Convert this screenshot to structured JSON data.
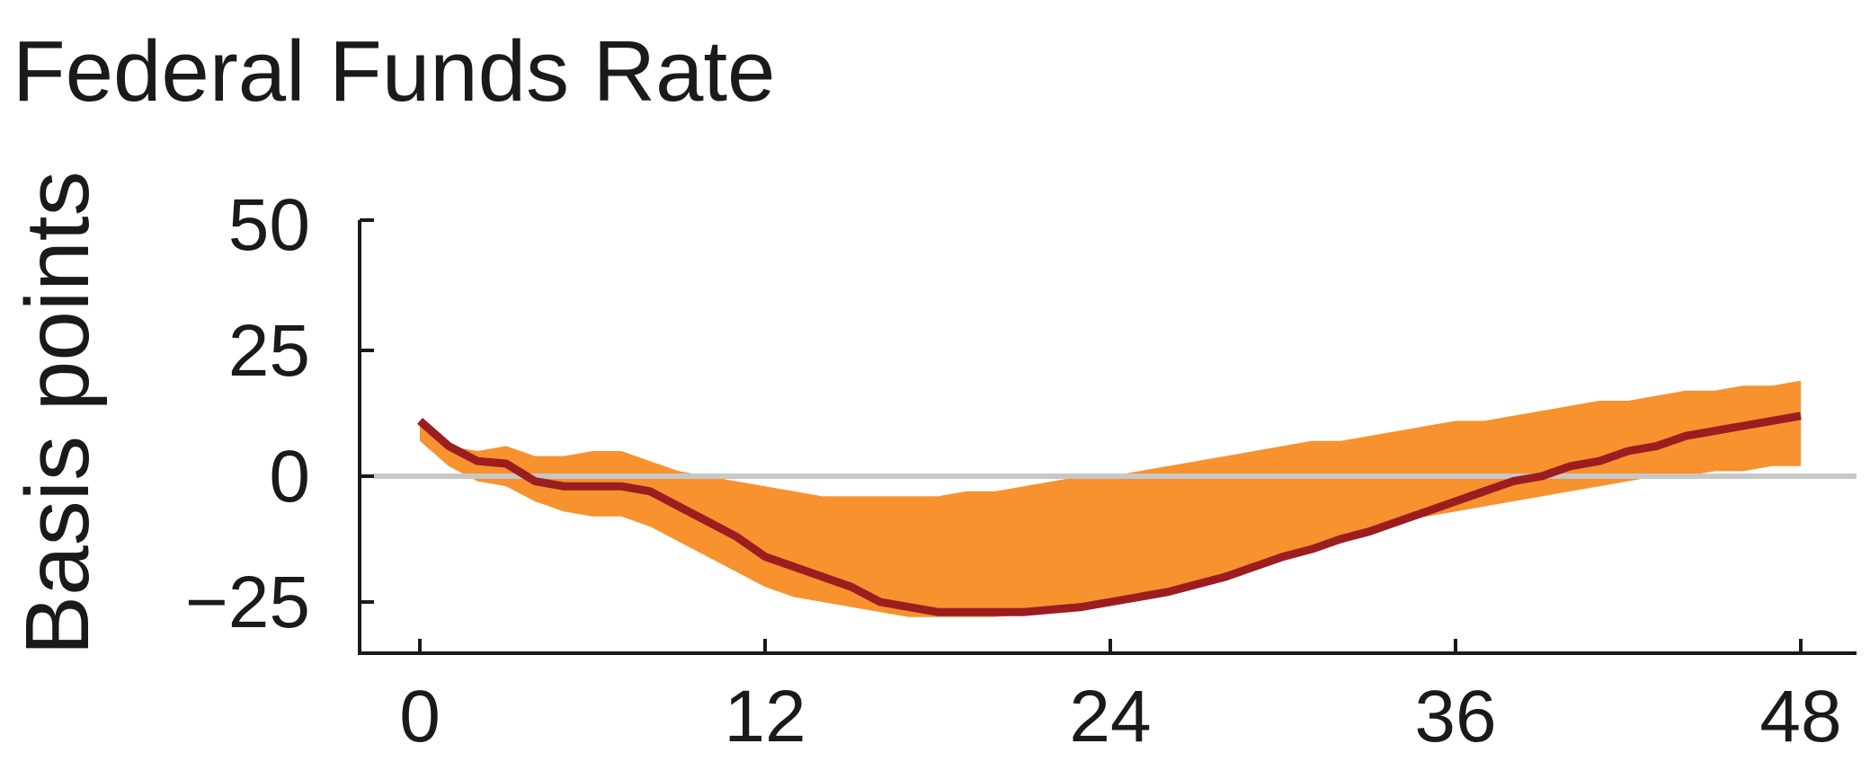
{
  "chart_data": {
    "type": "area",
    "title": "Federal Funds Rate",
    "xlabel": "",
    "ylabel": "Basis points",
    "xlim": [
      0,
      48
    ],
    "ylim": [
      -35,
      50
    ],
    "xticks": [
      0,
      12,
      24,
      36,
      48
    ],
    "xtick_labels": [
      "0",
      "12",
      "24",
      "36",
      "48"
    ],
    "yticks": [
      50,
      25,
      0,
      -25
    ],
    "ytick_labels": [
      "50",
      "25",
      "0",
      "−25"
    ],
    "zero_line": true,
    "grid": false,
    "colors": {
      "band": "#f7922f",
      "line": "#9c1d20",
      "zero_line": "#c7c7c7",
      "axis": "#1a1a1a"
    },
    "x": [
      0,
      1,
      2,
      3,
      4,
      5,
      6,
      7,
      8,
      9,
      10,
      11,
      12,
      13,
      14,
      15,
      16,
      17,
      18,
      19,
      20,
      21,
      22,
      23,
      24,
      25,
      26,
      27,
      28,
      29,
      30,
      31,
      32,
      33,
      34,
      35,
      36,
      37,
      38,
      39,
      40,
      41,
      42,
      43,
      44,
      45,
      46,
      47,
      48
    ],
    "series": [
      {
        "role": "median",
        "values": [
          11,
          6,
          3,
          2.5,
          -1,
          -2,
          -2,
          -2,
          -3,
          -6,
          -9,
          -12,
          -16,
          -18,
          -20,
          -22,
          -25,
          -26,
          -27,
          -27,
          -27,
          -27,
          -26.5,
          -26,
          -25,
          -24,
          -23,
          -21.5,
          -20,
          -18,
          -16,
          -14.5,
          -12.5,
          -11,
          -9,
          -7,
          -5,
          -3,
          -1,
          0,
          2,
          3,
          5,
          6,
          8,
          9,
          10,
          11,
          12
        ]
      },
      {
        "role": "band_upper",
        "values": [
          10,
          6,
          5,
          6,
          4,
          4,
          5,
          5,
          3,
          1,
          0,
          -1,
          -2,
          -3,
          -4,
          -4,
          -4,
          -4,
          -4,
          -3,
          -3,
          -2,
          -1,
          0,
          0,
          1,
          2,
          3,
          4,
          5,
          6,
          7,
          7,
          8,
          9,
          10,
          11,
          11,
          12,
          13,
          14,
          15,
          15,
          16,
          17,
          17,
          18,
          18,
          19
        ]
      },
      {
        "role": "band_lower",
        "values": [
          7,
          2,
          -1,
          -2,
          -5,
          -7,
          -8,
          -8,
          -10,
          -13,
          -16,
          -19,
          -22,
          -24,
          -25,
          -26,
          -27,
          -28,
          -28,
          -28,
          -28,
          -27.5,
          -27,
          -26,
          -25,
          -24,
          -23,
          -21.5,
          -20,
          -18,
          -16,
          -14.5,
          -12.5,
          -11,
          -9,
          -8,
          -7,
          -6,
          -5,
          -4,
          -3,
          -2,
          -1,
          0,
          0,
          1,
          1,
          2,
          2
        ]
      }
    ]
  }
}
